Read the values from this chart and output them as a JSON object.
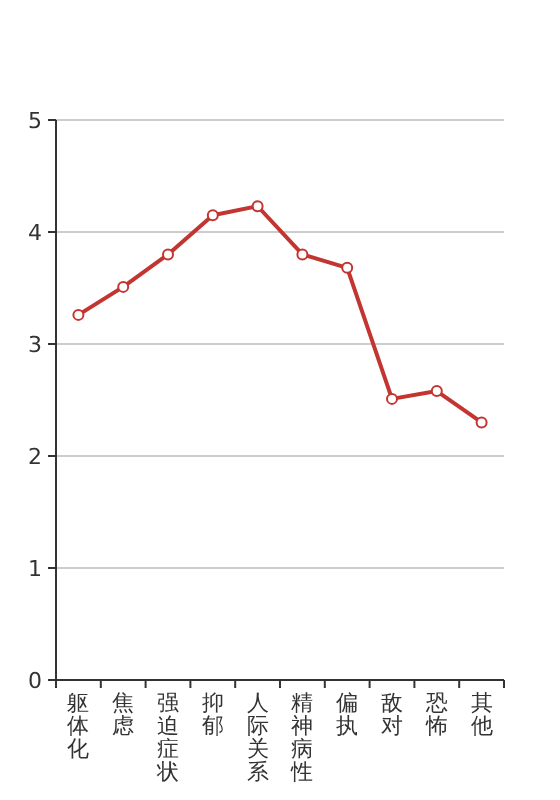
{
  "chart_data": {
    "type": "line",
    "categories": [
      "躯体化",
      "焦虑",
      "强迫症状",
      "抑郁",
      "人际关系",
      "精神病性",
      "偏执",
      "敌对",
      "恐怖",
      "其他"
    ],
    "series": [
      {
        "color": "#c23531",
        "values": [
          3.26,
          3.51,
          3.8,
          4.15,
          4.23,
          3.8,
          3.68,
          2.51,
          2.58,
          2.3
        ]
      }
    ],
    "ylim": [
      0,
      5
    ],
    "yticks": [
      0,
      1,
      2,
      3,
      4,
      5
    ],
    "grid": "y",
    "marker": "circle",
    "line_style": "solid"
  }
}
